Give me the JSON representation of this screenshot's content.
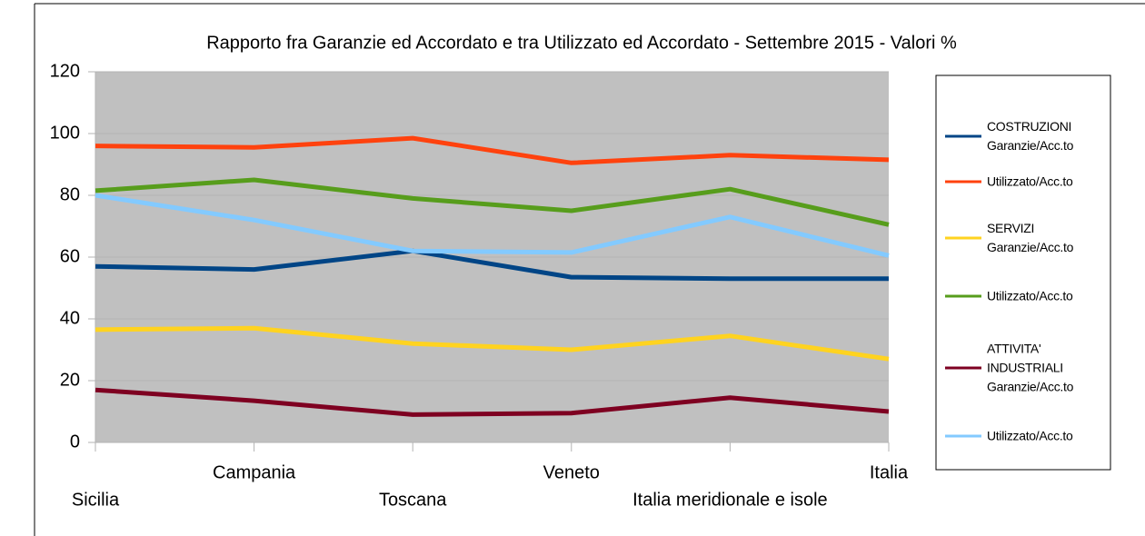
{
  "chart_data": {
    "type": "line",
    "title": "Rapporto fra Garanzie ed Accordato e tra Utilizzato ed Accordato - Settembre 2015 - Valori %",
    "categories": [
      "Sicilia",
      "Campania",
      "Toscana",
      "Veneto",
      "Italia meridionale e isole",
      "Italia"
    ],
    "series": [
      {
        "name": "COSTRUZIONI Garanzie/Acc.to",
        "color": "#004586",
        "values": [
          57,
          56,
          62,
          53.5,
          53,
          53
        ]
      },
      {
        "name": "Utilizzato/Acc.to",
        "color": "#ff420e",
        "values": [
          96,
          95.5,
          98.5,
          90.5,
          93,
          91.5
        ]
      },
      {
        "name": "SERVIZI Garanzie/Acc.to",
        "color": "#ffd320",
        "values": [
          36.5,
          37,
          32,
          30,
          34.5,
          27
        ]
      },
      {
        "name": "Utilizzato/Acc.to",
        "color": "#579d1c",
        "values": [
          81.5,
          85,
          79,
          75,
          82,
          70.5
        ]
      },
      {
        "name": "ATTIVITA' INDUSTRIALI Garanzie/Acc.to",
        "color": "#7e0021",
        "values": [
          17,
          13.5,
          9,
          9.5,
          14.5,
          10
        ]
      },
      {
        "name": "Utilizzato/Acc.to",
        "color": "#83caff",
        "values": [
          80,
          72,
          62,
          61.5,
          73,
          60.5
        ]
      }
    ],
    "ylim": [
      0,
      120
    ],
    "yticks": [
      0,
      20,
      40,
      60,
      80,
      100,
      120
    ],
    "grid": true,
    "legend": "right"
  }
}
